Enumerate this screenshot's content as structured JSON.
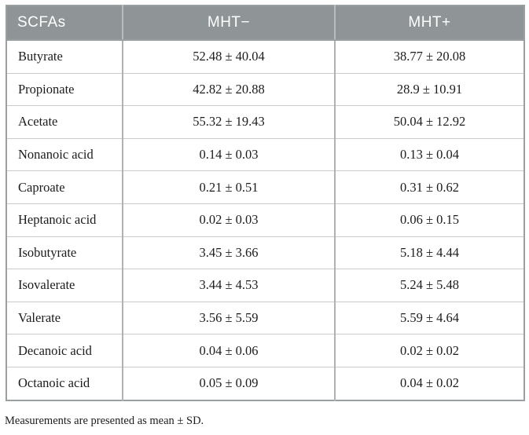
{
  "table": {
    "columns": [
      "SCFAs",
      "MHT−",
      "MHT+"
    ],
    "rows": [
      [
        "Butyrate",
        "52.48 ± 40.04",
        "38.77 ± 20.08"
      ],
      [
        "Propionate",
        "42.82 ± 20.88",
        "28.9 ± 10.91"
      ],
      [
        "Acetate",
        "55.32 ± 19.43",
        "50.04 ± 12.92"
      ],
      [
        "Nonanoic acid",
        "0.14 ± 0.03",
        "0.13 ± 0.04"
      ],
      [
        "Caproate",
        "0.21 ± 0.51",
        "0.31 ± 0.62"
      ],
      [
        "Heptanoic acid",
        "0.02 ± 0.03",
        "0.06 ± 0.15"
      ],
      [
        "Isobutyrate",
        "3.45 ± 3.66",
        "5.18 ± 4.44"
      ],
      [
        "Isovalerate",
        "3.44 ± 4.53",
        "5.24 ± 5.48"
      ],
      [
        "Valerate",
        "3.56 ± 5.59",
        "5.59 ± 4.64"
      ],
      [
        "Decanoic acid",
        "0.04 ± 0.06",
        "0.02 ± 0.02"
      ],
      [
        "Octanoic acid",
        "0.05 ± 0.09",
        "0.04 ± 0.02"
      ]
    ]
  },
  "footnote": "Measurements are presented as mean ± SD.",
  "colors": {
    "header_bg": "#8f9596",
    "header_text": "#ffffff",
    "outer_border": "#9aa0a1",
    "inner_vertical_border": "#aeb2b3",
    "inner_horizontal_border": "#c9cbcb",
    "body_text": "#1c1c1c"
  }
}
